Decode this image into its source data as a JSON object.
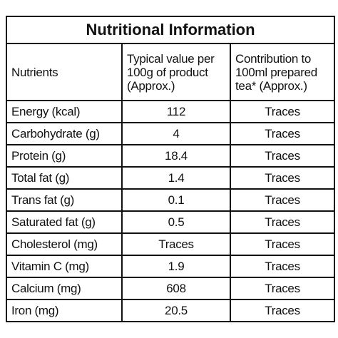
{
  "table": {
    "title": "Nutritional Information",
    "columns": [
      [
        "Nutrients"
      ],
      [
        "Typical value per",
        "100g of product",
        "(Approx.)"
      ],
      [
        "Contribution to",
        "100ml prepared",
        "tea* (Approx.)"
      ]
    ],
    "rows": [
      [
        "Energy (kcal)",
        "112",
        "Traces"
      ],
      [
        "Carbohydrate (g)",
        "4",
        "Traces"
      ],
      [
        "Protein (g)",
        "18.4",
        "Traces"
      ],
      [
        "Total fat (g)",
        "1.4",
        "Traces"
      ],
      [
        "Trans fat (g)",
        "0.1",
        "Traces"
      ],
      [
        "Saturated fat (g)",
        "0.5",
        "Traces"
      ],
      [
        "Cholesterol (mg)",
        "Traces",
        "Traces"
      ],
      [
        "Vitamin C (mg)",
        "1.9",
        "Traces"
      ],
      [
        "Calcium (mg)",
        "608",
        "Traces"
      ],
      [
        "Iron (mg)",
        "20.5",
        "Traces"
      ]
    ]
  }
}
